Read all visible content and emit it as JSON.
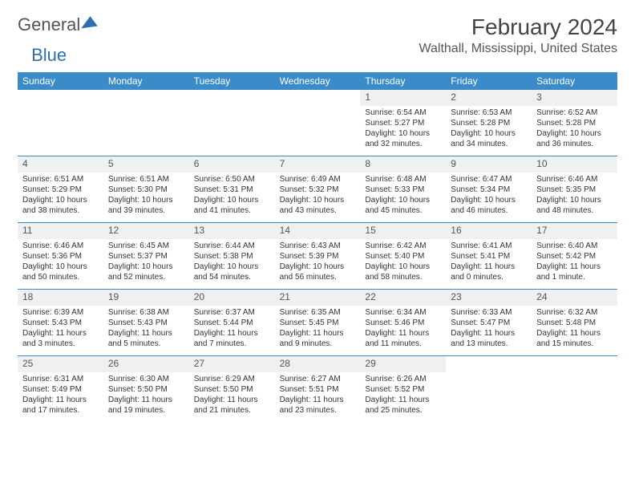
{
  "brand": {
    "word1": "General",
    "word2": "Blue"
  },
  "title": "February 2024",
  "location": "Walthall, Mississippi, United States",
  "colors": {
    "header_bg": "#3b8bc9",
    "header_fg": "#ffffff",
    "daynum_bg": "#eef0f2",
    "text": "#333333",
    "rule": "#3b8bc9",
    "brand_blue": "#2f6fb0"
  },
  "font": {
    "family": "Arial",
    "title_size_pt": 21,
    "location_size_pt": 12,
    "dayhead_size_pt": 9,
    "body_size_pt": 7.5
  },
  "day_labels": [
    "Sunday",
    "Monday",
    "Tuesday",
    "Wednesday",
    "Thursday",
    "Friday",
    "Saturday"
  ],
  "weeks": [
    [
      {
        "empty": true
      },
      {
        "empty": true
      },
      {
        "empty": true
      },
      {
        "empty": true
      },
      {
        "n": "1",
        "sunrise": "Sunrise: 6:54 AM",
        "sunset": "Sunset: 5:27 PM",
        "daylight": "Daylight: 10 hours and 32 minutes."
      },
      {
        "n": "2",
        "sunrise": "Sunrise: 6:53 AM",
        "sunset": "Sunset: 5:28 PM",
        "daylight": "Daylight: 10 hours and 34 minutes."
      },
      {
        "n": "3",
        "sunrise": "Sunrise: 6:52 AM",
        "sunset": "Sunset: 5:28 PM",
        "daylight": "Daylight: 10 hours and 36 minutes."
      }
    ],
    [
      {
        "n": "4",
        "sunrise": "Sunrise: 6:51 AM",
        "sunset": "Sunset: 5:29 PM",
        "daylight": "Daylight: 10 hours and 38 minutes."
      },
      {
        "n": "5",
        "sunrise": "Sunrise: 6:51 AM",
        "sunset": "Sunset: 5:30 PM",
        "daylight": "Daylight: 10 hours and 39 minutes."
      },
      {
        "n": "6",
        "sunrise": "Sunrise: 6:50 AM",
        "sunset": "Sunset: 5:31 PM",
        "daylight": "Daylight: 10 hours and 41 minutes."
      },
      {
        "n": "7",
        "sunrise": "Sunrise: 6:49 AM",
        "sunset": "Sunset: 5:32 PM",
        "daylight": "Daylight: 10 hours and 43 minutes."
      },
      {
        "n": "8",
        "sunrise": "Sunrise: 6:48 AM",
        "sunset": "Sunset: 5:33 PM",
        "daylight": "Daylight: 10 hours and 45 minutes."
      },
      {
        "n": "9",
        "sunrise": "Sunrise: 6:47 AM",
        "sunset": "Sunset: 5:34 PM",
        "daylight": "Daylight: 10 hours and 46 minutes."
      },
      {
        "n": "10",
        "sunrise": "Sunrise: 6:46 AM",
        "sunset": "Sunset: 5:35 PM",
        "daylight": "Daylight: 10 hours and 48 minutes."
      }
    ],
    [
      {
        "n": "11",
        "sunrise": "Sunrise: 6:46 AM",
        "sunset": "Sunset: 5:36 PM",
        "daylight": "Daylight: 10 hours and 50 minutes."
      },
      {
        "n": "12",
        "sunrise": "Sunrise: 6:45 AM",
        "sunset": "Sunset: 5:37 PM",
        "daylight": "Daylight: 10 hours and 52 minutes."
      },
      {
        "n": "13",
        "sunrise": "Sunrise: 6:44 AM",
        "sunset": "Sunset: 5:38 PM",
        "daylight": "Daylight: 10 hours and 54 minutes."
      },
      {
        "n": "14",
        "sunrise": "Sunrise: 6:43 AM",
        "sunset": "Sunset: 5:39 PM",
        "daylight": "Daylight: 10 hours and 56 minutes."
      },
      {
        "n": "15",
        "sunrise": "Sunrise: 6:42 AM",
        "sunset": "Sunset: 5:40 PM",
        "daylight": "Daylight: 10 hours and 58 minutes."
      },
      {
        "n": "16",
        "sunrise": "Sunrise: 6:41 AM",
        "sunset": "Sunset: 5:41 PM",
        "daylight": "Daylight: 11 hours and 0 minutes."
      },
      {
        "n": "17",
        "sunrise": "Sunrise: 6:40 AM",
        "sunset": "Sunset: 5:42 PM",
        "daylight": "Daylight: 11 hours and 1 minute."
      }
    ],
    [
      {
        "n": "18",
        "sunrise": "Sunrise: 6:39 AM",
        "sunset": "Sunset: 5:43 PM",
        "daylight": "Daylight: 11 hours and 3 minutes."
      },
      {
        "n": "19",
        "sunrise": "Sunrise: 6:38 AM",
        "sunset": "Sunset: 5:43 PM",
        "daylight": "Daylight: 11 hours and 5 minutes."
      },
      {
        "n": "20",
        "sunrise": "Sunrise: 6:37 AM",
        "sunset": "Sunset: 5:44 PM",
        "daylight": "Daylight: 11 hours and 7 minutes."
      },
      {
        "n": "21",
        "sunrise": "Sunrise: 6:35 AM",
        "sunset": "Sunset: 5:45 PM",
        "daylight": "Daylight: 11 hours and 9 minutes."
      },
      {
        "n": "22",
        "sunrise": "Sunrise: 6:34 AM",
        "sunset": "Sunset: 5:46 PM",
        "daylight": "Daylight: 11 hours and 11 minutes."
      },
      {
        "n": "23",
        "sunrise": "Sunrise: 6:33 AM",
        "sunset": "Sunset: 5:47 PM",
        "daylight": "Daylight: 11 hours and 13 minutes."
      },
      {
        "n": "24",
        "sunrise": "Sunrise: 6:32 AM",
        "sunset": "Sunset: 5:48 PM",
        "daylight": "Daylight: 11 hours and 15 minutes."
      }
    ],
    [
      {
        "n": "25",
        "sunrise": "Sunrise: 6:31 AM",
        "sunset": "Sunset: 5:49 PM",
        "daylight": "Daylight: 11 hours and 17 minutes."
      },
      {
        "n": "26",
        "sunrise": "Sunrise: 6:30 AM",
        "sunset": "Sunset: 5:50 PM",
        "daylight": "Daylight: 11 hours and 19 minutes."
      },
      {
        "n": "27",
        "sunrise": "Sunrise: 6:29 AM",
        "sunset": "Sunset: 5:50 PM",
        "daylight": "Daylight: 11 hours and 21 minutes."
      },
      {
        "n": "28",
        "sunrise": "Sunrise: 6:27 AM",
        "sunset": "Sunset: 5:51 PM",
        "daylight": "Daylight: 11 hours and 23 minutes."
      },
      {
        "n": "29",
        "sunrise": "Sunrise: 6:26 AM",
        "sunset": "Sunset: 5:52 PM",
        "daylight": "Daylight: 11 hours and 25 minutes."
      },
      {
        "empty": true
      },
      {
        "empty": true
      }
    ]
  ]
}
